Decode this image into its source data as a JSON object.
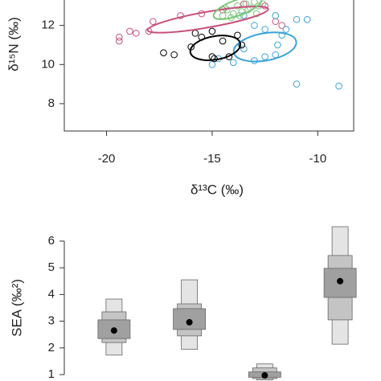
{
  "chart_data": [
    {
      "type": "scatter",
      "xlabel": "δ¹³C (‰)",
      "ylabel": "δ¹⁵N (‰)",
      "xlim": [
        -22,
        -8.3
      ],
      "ylim": [
        6.6,
        13.3
      ],
      "xticks": [
        -20,
        -15,
        -10
      ],
      "yticks": [
        8,
        10,
        12
      ],
      "series": [
        {
          "color": "#c8507a",
          "x": [
            -19.4,
            -19.4,
            -18.9,
            -18.6,
            -18.0,
            -17.8,
            -16.5,
            -15.5,
            -14.5,
            -13.5,
            -12.5,
            -12.0,
            -11.7
          ],
          "values": [
            11.4,
            11.2,
            11.7,
            11.6,
            11.7,
            12.2,
            12.5,
            12.6,
            12.8,
            13.1,
            13.0,
            12.2,
            12.0
          ],
          "ellipse": {
            "cx": -15.2,
            "cy": 12.3,
            "rx": 2.9,
            "ry": 0.4,
            "rotation": -10
          }
        },
        {
          "color": "#7dc67d",
          "x": [
            -14.5,
            -14.3,
            -14.0,
            -13.8,
            -13.6,
            -13.4,
            -13.2,
            -13.0,
            -12.8,
            -12.6,
            -14.1,
            -13.7,
            -13.3,
            -14.4,
            -12.9
          ],
          "values": [
            12.5,
            12.8,
            12.6,
            13.0,
            12.7,
            13.1,
            12.9,
            13.2,
            13.0,
            13.1,
            12.4,
            12.5,
            12.8,
            12.9,
            12.6
          ],
          "ellipse": {
            "cx": -13.8,
            "cy": 12.9,
            "rx": 1.2,
            "ry": 0.4,
            "rotation": -20
          }
        },
        {
          "color": "#3ba3d8",
          "x": [
            -13.5,
            -13.0,
            -12.5,
            -12.0,
            -11.7,
            -11.5,
            -11.0,
            -10.5,
            -12.5,
            -13.0,
            -14.0,
            -15.0,
            -13.5,
            -12.0,
            -11.0,
            -9.0,
            -11.9,
            -14.7
          ],
          "values": [
            12.5,
            12.0,
            11.8,
            12.5,
            11.5,
            11.8,
            12.3,
            12.3,
            10.4,
            10.2,
            10.1,
            10.0,
            10.8,
            10.5,
            9.0,
            8.9,
            11.0,
            10.3
          ],
          "ellipse": {
            "cx": -12.5,
            "cy": 10.9,
            "rx": 1.5,
            "ry": 0.7,
            "rotation": -10
          }
        },
        {
          "color": "#000000",
          "x": [
            -17.3,
            -16.8,
            -16.0,
            -15.5,
            -15.0,
            -14.5,
            -15.0,
            -14.2,
            -13.8,
            -13.6,
            -15.8,
            -14.9
          ],
          "values": [
            10.6,
            10.5,
            10.9,
            11.4,
            11.7,
            11.2,
            10.4,
            10.4,
            11.5,
            11.0,
            11.6,
            10.3
          ],
          "ellipse": {
            "cx": -14.85,
            "cy": 10.85,
            "rx": 1.2,
            "ry": 0.6,
            "rotation": -10
          }
        }
      ]
    },
    {
      "type": "box",
      "ylabel": "SEA (‰²)",
      "ylim": [
        0.76,
        6.45
      ],
      "yticks": [
        1,
        2,
        3,
        4,
        5,
        6
      ],
      "categories": [
        null,
        null,
        null,
        null
      ],
      "colors": [
        "#e4e4e4",
        "#c4c4c4",
        "#a0a0a0"
      ],
      "groups": [
        {
          "outer": [
            1.73,
            3.83
          ],
          "mid": [
            2.2,
            3.35
          ],
          "inner": [
            2.35,
            3.05
          ],
          "mode": 2.65
        },
        {
          "outer": [
            1.95,
            4.55
          ],
          "mid": [
            2.45,
            3.65
          ],
          "inner": [
            2.69,
            3.47
          ],
          "mode": 2.96
        },
        {
          "outer": [
            0.8,
            1.4
          ],
          "mid": [
            0.85,
            1.25
          ],
          "inner": [
            0.9,
            1.1
          ],
          "mode": 0.97
        },
        {
          "outer": [
            2.14,
            6.54
          ],
          "mid": [
            3.05,
            5.46
          ],
          "inner": [
            3.89,
            4.98
          ],
          "mode": 4.5
        }
      ]
    }
  ]
}
